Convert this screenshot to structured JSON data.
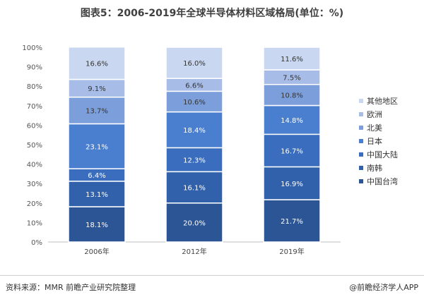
{
  "chart_data": {
    "type": "bar",
    "stacked": true,
    "title": "图表5：2006-2019年全球半导体材料区域格局(单位：%)",
    "categories": [
      "2006年",
      "2012年",
      "2019年"
    ],
    "ylim": [
      0,
      100
    ],
    "y_ticks": [
      "0%",
      "10%",
      "20%",
      "30%",
      "40%",
      "50%",
      "60%",
      "70%",
      "80%",
      "90%",
      "100%"
    ],
    "series": [
      {
        "name": "中国台湾",
        "color": "#2c5595",
        "values": [
          18.1,
          20.0,
          21.7
        ],
        "labels": [
          "18.1%",
          "20.0%",
          "21.7%"
        ]
      },
      {
        "name": "南韩",
        "color": "#3161ab",
        "values": [
          13.1,
          16.1,
          16.9
        ],
        "labels": [
          "13.1%",
          "16.1%",
          "16.9%"
        ]
      },
      {
        "name": "中国大陆",
        "color": "#3a6dbd",
        "values": [
          6.4,
          12.3,
          16.7
        ],
        "labels": [
          "6.4%",
          "12.3%",
          "16.7%"
        ]
      },
      {
        "name": "日本",
        "color": "#4a7fcf",
        "values": [
          23.1,
          18.4,
          14.8
        ],
        "labels": [
          "23.1%",
          "18.4%",
          "14.8%"
        ]
      },
      {
        "name": "北美",
        "color": "#7c9fdc",
        "values": [
          13.7,
          10.6,
          10.8
        ],
        "labels": [
          "13.7%",
          "10.6%",
          "10.8%"
        ]
      },
      {
        "name": "欧洲",
        "color": "#a7bde8",
        "values": [
          9.1,
          6.6,
          7.5
        ],
        "labels": [
          "9.1%",
          "6.6%",
          "7.5%"
        ]
      },
      {
        "name": "其他地区",
        "color": "#c9d7f1",
        "values": [
          16.6,
          16.0,
          11.6
        ],
        "labels": [
          "16.6%",
          "16.0%",
          "11.6%"
        ]
      }
    ],
    "legend_position": "right",
    "legend_order": [
      "其他地区",
      "欧洲",
      "北美",
      "日本",
      "中国大陆",
      "南韩",
      "中国台湾"
    ],
    "grid": false
  },
  "footer": {
    "source": "资料来源：MMR 前瞻产业研究院整理",
    "brand": "@前瞻经济学人APP"
  }
}
